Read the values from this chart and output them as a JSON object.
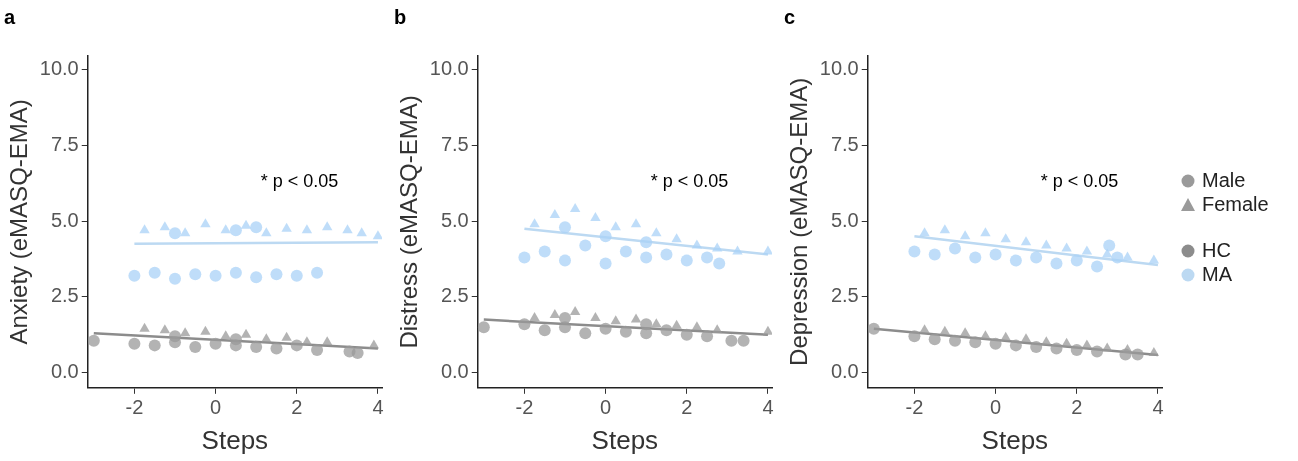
{
  "chart_data": [
    {
      "type": "scatter",
      "title": "a",
      "xlabel": "Steps",
      "ylabel": "Anxiety (eMASQ-EMA)",
      "xlim": [
        -3.15,
        4.1
      ],
      "ylim": [
        -0.5,
        10.45
      ],
      "xticks": [
        -2,
        0,
        2,
        4
      ],
      "yticks": [
        {
          "value": 0,
          "label": "0.0"
        },
        {
          "value": 2.5,
          "label": "2.5"
        },
        {
          "value": 5,
          "label": "5.0"
        },
        {
          "value": 7.5,
          "label": "7.5"
        },
        {
          "value": 10,
          "label": "10.0"
        }
      ],
      "grid": false,
      "legend": false,
      "annotations": [
        "* p < 0.05"
      ],
      "series": [
        {
          "type": "scatter",
          "marker": "circle",
          "x": [
            -3,
            -2,
            -1.5,
            -1,
            -0.5,
            0,
            0.5,
            1,
            1.5,
            2,
            2.5,
            3.3,
            3.5,
            -1,
            0.5,
            -2,
            -1.5,
            -1,
            -0.5,
            0,
            0.5,
            1,
            1.5,
            2,
            2.5,
            -1,
            0.5,
            1
          ],
          "values": [
            1.05,
            0.95,
            0.9,
            1.0,
            0.85,
            0.95,
            0.9,
            0.85,
            0.8,
            0.9,
            0.75,
            0.7,
            0.65,
            1.2,
            1.1,
            3.2,
            3.3,
            3.1,
            3.25,
            3.2,
            3.3,
            3.15,
            3.25,
            3.2,
            3.3,
            4.6,
            4.7,
            4.8
          ],
          "colors": [
            "#9a9a9a",
            "#9a9a9a",
            "#9a9a9a",
            "#9a9a9a",
            "#9a9a9a",
            "#9a9a9a",
            "#9a9a9a",
            "#9a9a9a",
            "#9a9a9a",
            "#9a9a9a",
            "#9a9a9a",
            "#9a9a9a",
            "#9a9a9a",
            "#9a9a9a",
            "#9a9a9a",
            "#a9d1f7",
            "#a9d1f7",
            "#a9d1f7",
            "#a9d1f7",
            "#a9d1f7",
            "#a9d1f7",
            "#a9d1f7",
            "#a9d1f7",
            "#a9d1f7",
            "#a9d1f7",
            "#a9d1f7",
            "#a9d1f7",
            "#a9d1f7"
          ]
        },
        {
          "type": "scatter",
          "marker": "triangle",
          "x": [
            -1.75,
            -1.25,
            -0.75,
            -0.25,
            0.25,
            0.75,
            1.25,
            1.75,
            2.25,
            2.75,
            3.9,
            -1.75,
            -1.25,
            -0.75,
            -0.25,
            0.25,
            0.75,
            1.25,
            1.75,
            2.25,
            2.75,
            3.25,
            3.6,
            4
          ],
          "values": [
            1.45,
            1.4,
            1.3,
            1.35,
            1.2,
            1.25,
            1.1,
            1.15,
            1.0,
            1.0,
            0.9,
            4.7,
            4.8,
            4.6,
            4.9,
            4.7,
            4.85,
            4.6,
            4.75,
            4.7,
            4.8,
            4.7,
            4.6,
            4.5
          ],
          "colors": [
            "#9a9a9a",
            "#9a9a9a",
            "#9a9a9a",
            "#9a9a9a",
            "#9a9a9a",
            "#9a9a9a",
            "#9a9a9a",
            "#9a9a9a",
            "#9a9a9a",
            "#9a9a9a",
            "#9a9a9a",
            "#a9d1f7",
            "#a9d1f7",
            "#a9d1f7",
            "#a9d1f7",
            "#a9d1f7",
            "#a9d1f7",
            "#a9d1f7",
            "#a9d1f7",
            "#a9d1f7",
            "#a9d1f7",
            "#a9d1f7",
            "#a9d1f7",
            "#a9d1f7"
          ]
        },
        {
          "type": "line",
          "color": "#8c8c8c",
          "x": [
            -3,
            4
          ],
          "values": [
            1.3,
            0.8
          ]
        },
        {
          "type": "line",
          "color": "#bcd9f2",
          "x": [
            -2,
            4
          ],
          "values": [
            4.25,
            4.3
          ]
        }
      ]
    },
    {
      "type": "scatter",
      "title": "b",
      "xlabel": "Steps",
      "ylabel": "Distress (eMASQ-EMA)",
      "xlim": [
        -3.15,
        4.1
      ],
      "ylim": [
        -0.5,
        10.45
      ],
      "xticks": [
        -2,
        0,
        2,
        4
      ],
      "yticks": [
        {
          "value": 0,
          "label": "0.0"
        },
        {
          "value": 2.5,
          "label": "2.5"
        },
        {
          "value": 5,
          "label": "5.0"
        },
        {
          "value": 7.5,
          "label": "7.5"
        },
        {
          "value": 10,
          "label": "10.0"
        }
      ],
      "grid": false,
      "legend": false,
      "annotations": [
        "* p < 0.05"
      ],
      "series": [
        {
          "type": "scatter",
          "marker": "circle",
          "x": [
            -3,
            -2,
            -1.5,
            -1,
            -0.5,
            0,
            0.5,
            1,
            1.5,
            2,
            2.5,
            3.1,
            3.4,
            -1,
            1,
            -2,
            -1.5,
            -1,
            -0.5,
            0,
            0.5,
            1,
            1.5,
            2,
            2.5,
            -1,
            0,
            1,
            2.8
          ],
          "values": [
            1.5,
            1.6,
            1.4,
            1.5,
            1.3,
            1.45,
            1.35,
            1.3,
            1.4,
            1.25,
            1.2,
            1.05,
            1.05,
            1.8,
            1.6,
            3.8,
            4.0,
            3.7,
            4.2,
            3.6,
            4.0,
            3.8,
            3.9,
            3.7,
            3.8,
            4.8,
            4.5,
            4.3,
            3.6
          ],
          "colors": [
            "#9a9a9a",
            "#9a9a9a",
            "#9a9a9a",
            "#9a9a9a",
            "#9a9a9a",
            "#9a9a9a",
            "#9a9a9a",
            "#9a9a9a",
            "#9a9a9a",
            "#9a9a9a",
            "#9a9a9a",
            "#9a9a9a",
            "#9a9a9a",
            "#9a9a9a",
            "#9a9a9a",
            "#a9d1f7",
            "#a9d1f7",
            "#a9d1f7",
            "#a9d1f7",
            "#a9d1f7",
            "#a9d1f7",
            "#a9d1f7",
            "#a9d1f7",
            "#a9d1f7",
            "#a9d1f7",
            "#a9d1f7",
            "#a9d1f7",
            "#a9d1f7",
            "#a9d1f7"
          ]
        },
        {
          "type": "scatter",
          "marker": "triangle",
          "x": [
            -1.75,
            -1.25,
            -0.75,
            -0.25,
            0.25,
            0.75,
            1.25,
            1.75,
            2.25,
            2.75,
            4,
            -1.75,
            -1.25,
            -0.75,
            -0.25,
            0.25,
            0.75,
            1.25,
            1.75,
            2.25,
            2.75,
            3.25,
            4
          ],
          "values": [
            1.8,
            1.9,
            2.0,
            1.8,
            1.7,
            1.75,
            1.6,
            1.55,
            1.5,
            1.4,
            1.35,
            4.9,
            5.2,
            5.4,
            5.1,
            4.8,
            4.9,
            4.6,
            4.4,
            4.2,
            4.1,
            4.0,
            4.0
          ],
          "colors": [
            "#9a9a9a",
            "#9a9a9a",
            "#9a9a9a",
            "#9a9a9a",
            "#9a9a9a",
            "#9a9a9a",
            "#9a9a9a",
            "#9a9a9a",
            "#9a9a9a",
            "#9a9a9a",
            "#9a9a9a",
            "#a9d1f7",
            "#a9d1f7",
            "#a9d1f7",
            "#a9d1f7",
            "#a9d1f7",
            "#a9d1f7",
            "#a9d1f7",
            "#a9d1f7",
            "#a9d1f7",
            "#a9d1f7",
            "#a9d1f7",
            "#a9d1f7"
          ]
        },
        {
          "type": "line",
          "color": "#8c8c8c",
          "x": [
            -3,
            4
          ],
          "values": [
            1.75,
            1.25
          ]
        },
        {
          "type": "line",
          "color": "#bcd9f2",
          "x": [
            -2,
            4
          ],
          "values": [
            4.75,
            3.9
          ]
        }
      ]
    },
    {
      "type": "scatter",
      "title": "c",
      "xlabel": "Steps",
      "ylabel": "Depression (eMASQ-EMA)",
      "xlim": [
        -3.15,
        4.1
      ],
      "ylim": [
        -0.5,
        10.45
      ],
      "xticks": [
        -2,
        0,
        2,
        4
      ],
      "yticks": [
        {
          "value": 0,
          "label": "0.0"
        },
        {
          "value": 2.5,
          "label": "2.5"
        },
        {
          "value": 5,
          "label": "5.0"
        },
        {
          "value": 7.5,
          "label": "7.5"
        },
        {
          "value": 10,
          "label": "10.0"
        }
      ],
      "grid": false,
      "legend": "right",
      "annotations": [
        "* p < 0.05"
      ],
      "series": [
        {
          "type": "scatter",
          "name": "Male",
          "marker": "circle",
          "x": [
            -3,
            -2,
            -1.5,
            -1,
            -0.5,
            0,
            0.5,
            1,
            1.5,
            2,
            2.5,
            3.2,
            3.5,
            -2,
            -1.5,
            -1,
            -0.5,
            0,
            0.5,
            1,
            1.5,
            2,
            2.5,
            2.8,
            3
          ],
          "values": [
            1.45,
            1.2,
            1.1,
            1.05,
            1.0,
            0.95,
            0.9,
            0.85,
            0.8,
            0.75,
            0.7,
            0.6,
            0.6,
            4.0,
            3.9,
            4.1,
            3.8,
            3.9,
            3.7,
            3.8,
            3.6,
            3.7,
            3.5,
            4.2,
            3.8
          ],
          "colors": [
            "#9a9a9a",
            "#9a9a9a",
            "#9a9a9a",
            "#9a9a9a",
            "#9a9a9a",
            "#9a9a9a",
            "#9a9a9a",
            "#9a9a9a",
            "#9a9a9a",
            "#9a9a9a",
            "#9a9a9a",
            "#9a9a9a",
            "#9a9a9a",
            "#a9d1f7",
            "#a9d1f7",
            "#a9d1f7",
            "#a9d1f7",
            "#a9d1f7",
            "#a9d1f7",
            "#a9d1f7",
            "#a9d1f7",
            "#a9d1f7",
            "#a9d1f7",
            "#a9d1f7",
            "#a9d1f7"
          ]
        },
        {
          "type": "scatter",
          "name": "Female",
          "marker": "triangle",
          "x": [
            -1.75,
            -1.25,
            -0.75,
            -0.25,
            0.25,
            0.75,
            1.25,
            1.75,
            2.25,
            2.75,
            3.25,
            3.9,
            -1.75,
            -1.25,
            -0.75,
            -0.25,
            0.25,
            0.75,
            1.25,
            1.75,
            2.25,
            2.75,
            3.25,
            3.9
          ],
          "values": [
            1.4,
            1.35,
            1.3,
            1.2,
            1.15,
            1.1,
            1.0,
            0.95,
            0.9,
            0.8,
            0.75,
            0.65,
            4.6,
            4.7,
            4.5,
            4.6,
            4.4,
            4.3,
            4.2,
            4.1,
            4.0,
            3.9,
            3.8,
            3.7
          ],
          "colors": [
            "#9a9a9a",
            "#9a9a9a",
            "#9a9a9a",
            "#9a9a9a",
            "#9a9a9a",
            "#9a9a9a",
            "#9a9a9a",
            "#9a9a9a",
            "#9a9a9a",
            "#9a9a9a",
            "#9a9a9a",
            "#9a9a9a",
            "#a9d1f7",
            "#a9d1f7",
            "#a9d1f7",
            "#a9d1f7",
            "#a9d1f7",
            "#a9d1f7",
            "#a9d1f7",
            "#a9d1f7",
            "#a9d1f7",
            "#a9d1f7",
            "#a9d1f7",
            "#a9d1f7"
          ]
        },
        {
          "type": "line",
          "name": "HC",
          "color": "#8c8c8c",
          "x": [
            -3,
            4
          ],
          "values": [
            1.45,
            0.58
          ]
        },
        {
          "type": "line",
          "name": "MA",
          "color": "#bcd9f2",
          "x": [
            -2,
            4
          ],
          "values": [
            4.5,
            3.55
          ]
        }
      ]
    }
  ]
}
